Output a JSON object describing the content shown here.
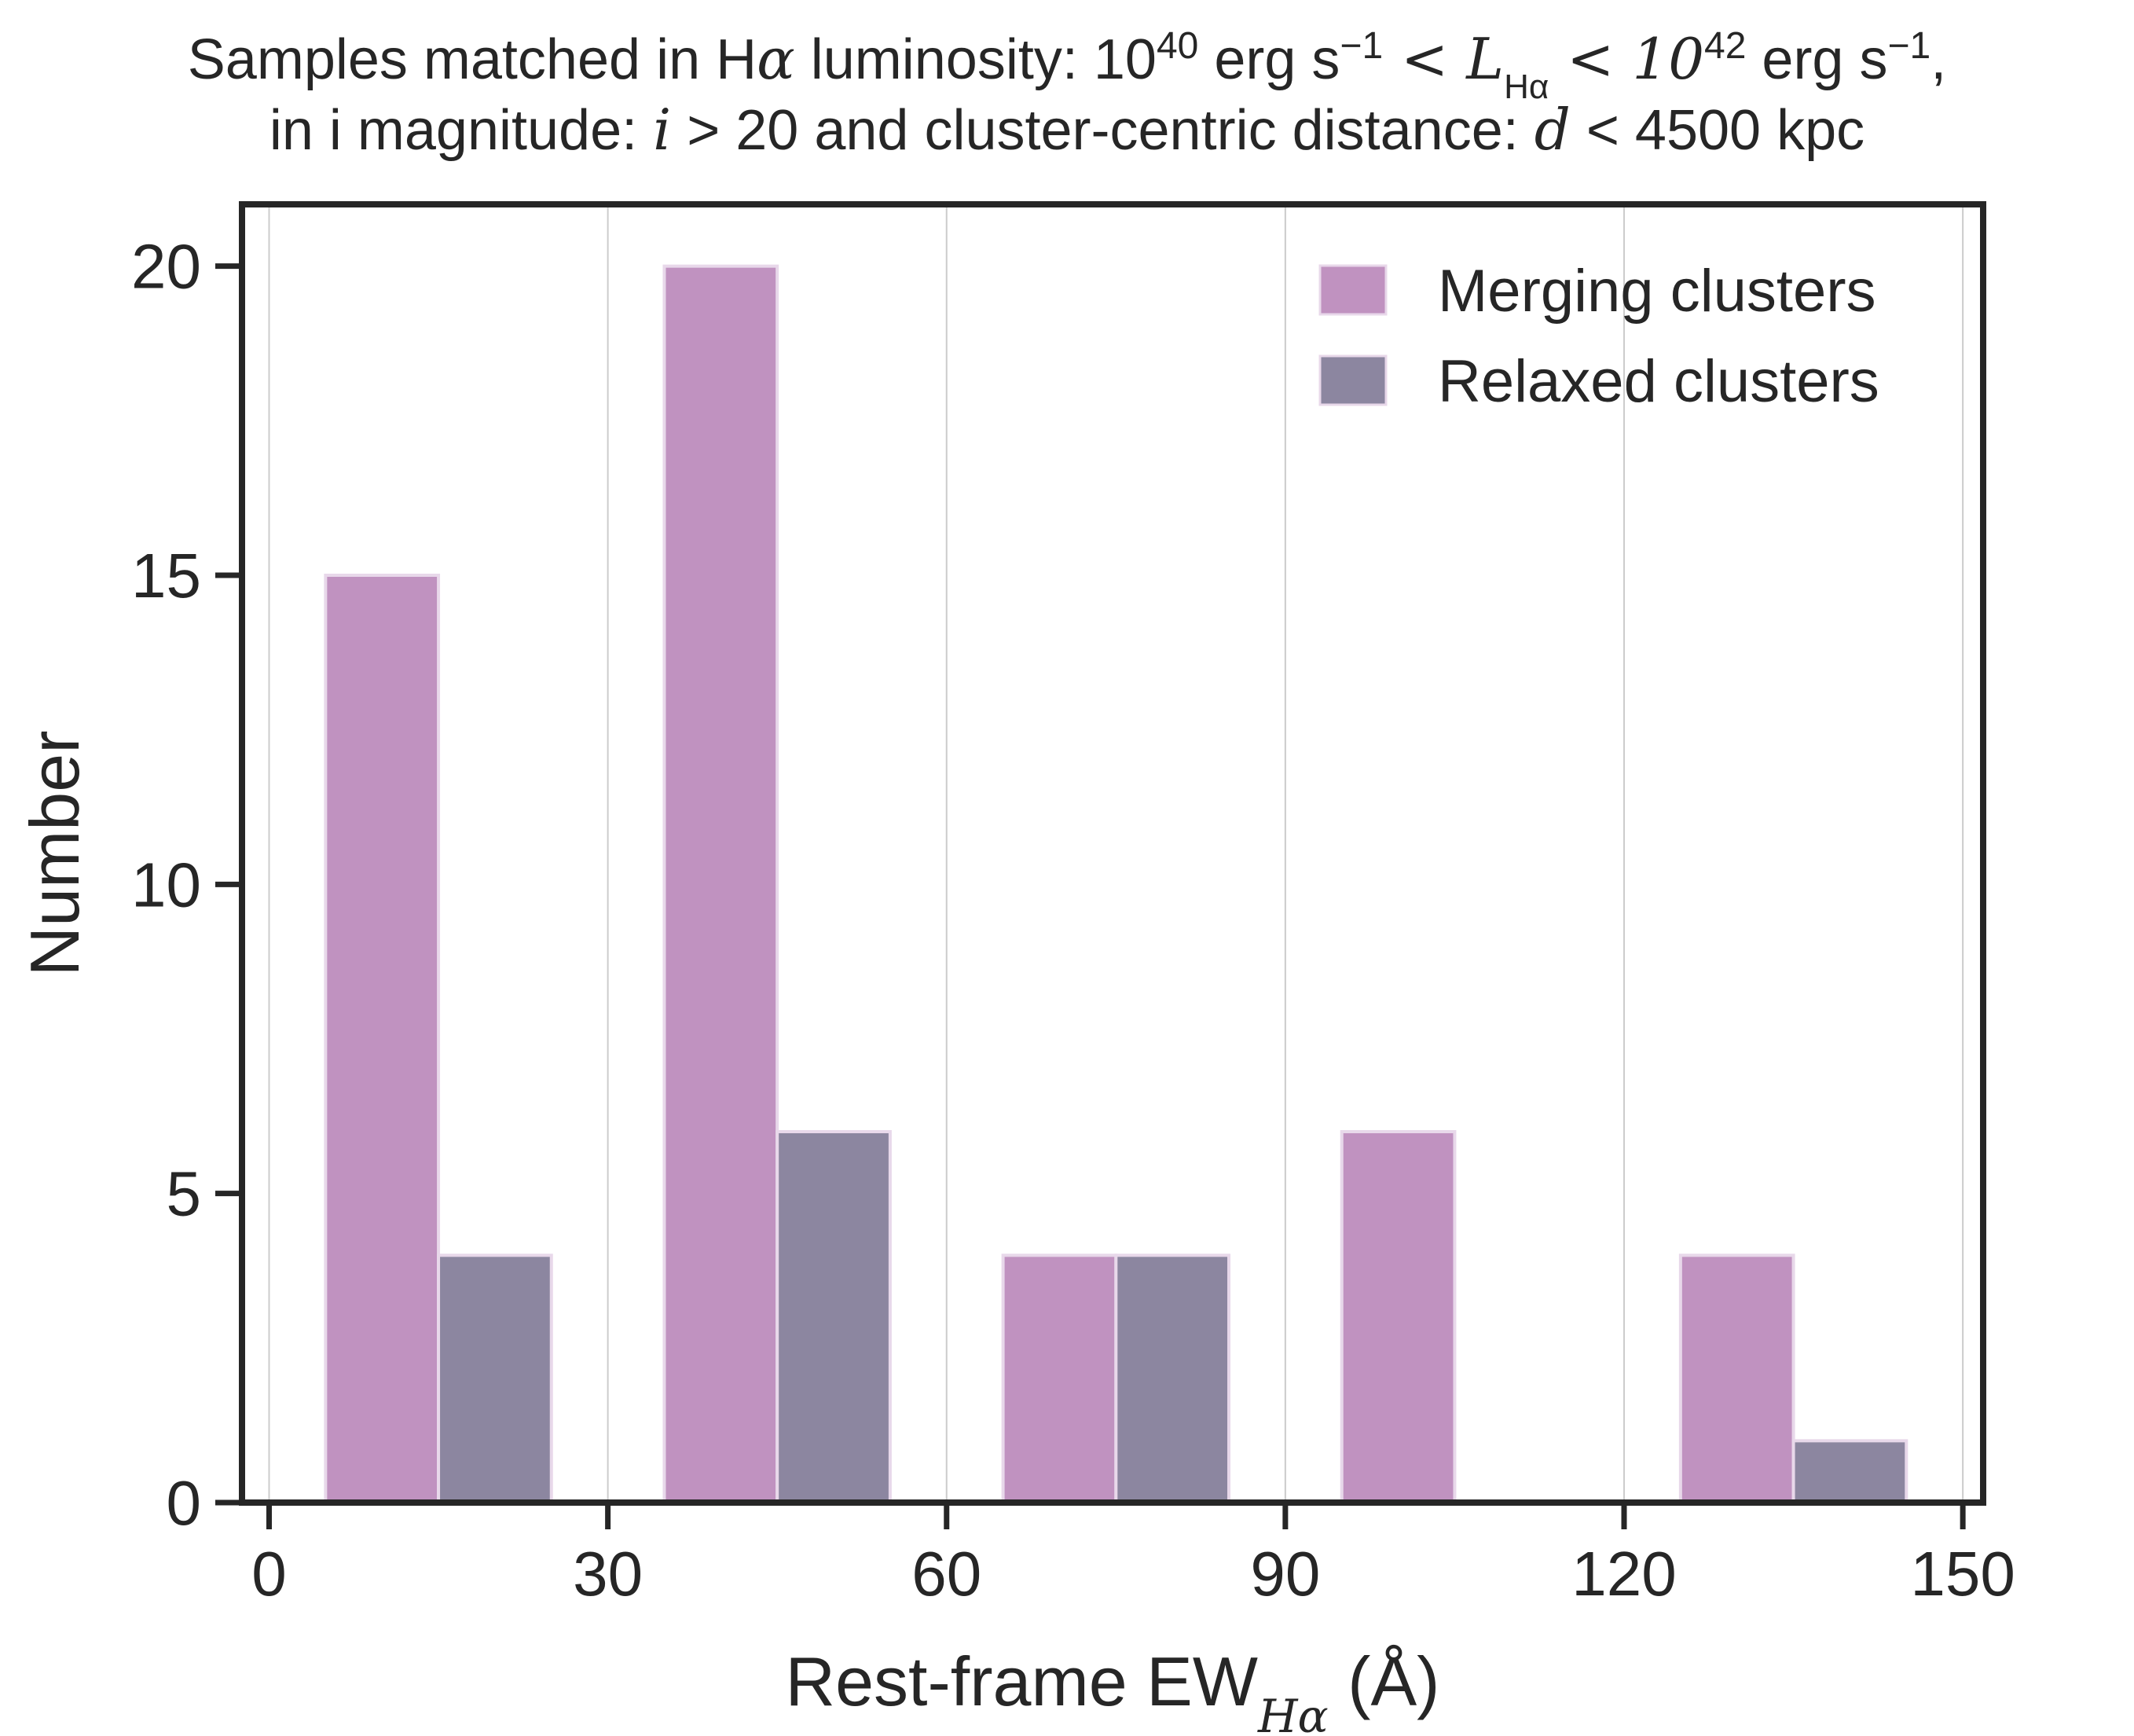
{
  "chart_data": {
    "type": "bar",
    "title_line1": {
      "part1": "Samples matched in H",
      "alpha": "α",
      "part2": " luminosity: 10",
      "exp1": "40",
      "part3": " erg s",
      "neg1": "−1",
      "lt1": " < ",
      "L": "L",
      "L_sub": "Hα",
      "lt2": " < 10",
      "exp2": "42",
      "part4": " erg s",
      "neg2": "−1",
      "comma": ","
    },
    "title_line2": {
      "part1": "in i magnitude: ",
      "i_var": "i",
      "gt": " > 20 and cluster-centric distance: ",
      "d_var": "d",
      "part2": " < 4500 kpc"
    },
    "xlabel": {
      "main": "Rest-frame EW",
      "sub": "Hα",
      "unit": " (Å)"
    },
    "ylabel": "Number",
    "xlim": [
      -2.4,
      151.8
    ],
    "ylim": [
      0,
      21
    ],
    "xticks": [
      0,
      30,
      60,
      90,
      120,
      150
    ],
    "xtick_labels": [
      "0",
      "30",
      "60",
      "90",
      "120",
      "150"
    ],
    "yticks": [
      0,
      5,
      10,
      15,
      20
    ],
    "ytick_labels": [
      "0",
      "5",
      "10",
      "15",
      "20"
    ],
    "grid": "vertical",
    "legend_position": "top-right",
    "series": [
      {
        "name": "Merging clusters",
        "color": "#c092c0",
        "bins": [
          [
            5,
            15
          ],
          [
            35,
            45
          ],
          [
            65,
            75
          ],
          [
            95,
            105
          ],
          [
            125,
            135
          ]
        ],
        "values": [
          15,
          20,
          4,
          6,
          4
        ]
      },
      {
        "name": "Relaxed clusters",
        "color": "#8c86a0",
        "bins": [
          [
            15,
            25
          ],
          [
            45,
            55
          ],
          [
            75,
            85
          ],
          [
            105,
            115
          ],
          [
            135,
            145
          ]
        ],
        "values": [
          4,
          6,
          4,
          0,
          1
        ]
      }
    ]
  }
}
